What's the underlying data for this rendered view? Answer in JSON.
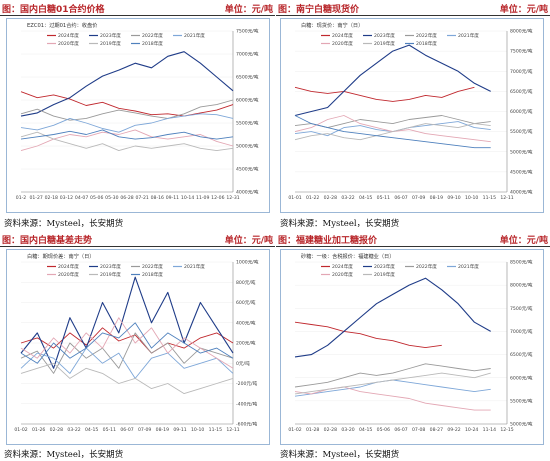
{
  "panels": [
    {
      "title": "图：国内白糖01合约价格",
      "unit": "单位：元/吨",
      "source": "资料来源：Mysteel，长安期货"
    },
    {
      "title": "图：南宁白糖现货价",
      "unit": "单位：元/吨",
      "source": "资料来源：Mysteel，长安期货"
    },
    {
      "title": "图：国内白糖基差走势",
      "unit": "单位：元/吨",
      "source": "资料来源：Mysteel，长安期货"
    },
    {
      "title": "图：福建糖业加工糖报价",
      "unit": "单位：元/吨",
      "source": "资料来源：Mysteel，长安期货"
    }
  ],
  "colors": {
    "2024": "#c0282e",
    "2023": "#1f3c88",
    "2022": "#9a9a9a",
    "2021": "#7ea7d8",
    "2020": "#e3a7b4",
    "2019": "#b9b9b9",
    "2018": "#4f81bd"
  },
  "chart_data": [
    {
      "type": "line",
      "title": "EZC01：过期01合约：收盘价",
      "yunit": "元/吨",
      "ylim": [
        4000,
        7500
      ],
      "yticks": [
        4000,
        4500,
        5000,
        5500,
        6000,
        6500,
        7000,
        7500
      ],
      "xticks": [
        "01-2",
        "01-27",
        "02-18",
        "03-12",
        "04-07",
        "05-06",
        "05-30",
        "06-28",
        "07-21",
        "08-16",
        "09-11",
        "10-14",
        "11-09",
        "12-06",
        "12-31"
      ],
      "legend": [
        "2024年度",
        "2023年度",
        "2022年度",
        "2021年度",
        "2020年度",
        "2019年度",
        "2018年度"
      ],
      "series": [
        {
          "name": "2024年度",
          "key": "2024",
          "values": [
            6180,
            6050,
            6110,
            6020,
            5880,
            5950,
            5820,
            5760,
            5680,
            5700,
            5650,
            5720,
            5780,
            5900
          ]
        },
        {
          "name": "2023年度",
          "key": "2023",
          "values": [
            5650,
            5720,
            5900,
            6050,
            6300,
            6520,
            6650,
            6800,
            6700,
            6950,
            7050,
            6800,
            6500,
            6200
          ]
        },
        {
          "name": "2022年度",
          "key": "2022",
          "values": [
            5700,
            5800,
            5650,
            5560,
            5600,
            5700,
            5780,
            5720,
            5650,
            5600,
            5700,
            5850,
            5900,
            6000
          ]
        },
        {
          "name": "2021年度",
          "key": "2021",
          "values": [
            5400,
            5350,
            5450,
            5600,
            5500,
            5380,
            5300,
            5450,
            5500,
            5600,
            5650,
            5700,
            5680,
            5600
          ]
        },
        {
          "name": "2020年度",
          "key": "2020",
          "values": [
            4900,
            5000,
            5150,
            5250,
            5200,
            5300,
            5250,
            5350,
            5200,
            5150,
            5200,
            5250,
            5100,
            5000
          ]
        },
        {
          "name": "2019年度",
          "key": "2019",
          "values": [
            5200,
            5300,
            5150,
            5050,
            4950,
            5050,
            4900,
            5000,
            4950,
            5000,
            5050,
            4950,
            4900,
            4950
          ]
        },
        {
          "name": "2018年度",
          "key": "2018",
          "values": [
            5150,
            5200,
            5250,
            5320,
            5250,
            5350,
            5200,
            5150,
            5180,
            5250,
            5300,
            5200,
            5150,
            5200
          ]
        }
      ]
    },
    {
      "type": "line",
      "title": "白糖：现货价：南宁（日）",
      "yunit": "元/吨",
      "ylim": [
        4000,
        8000
      ],
      "yticks": [
        4000,
        4500,
        5000,
        5500,
        6000,
        6500,
        7000,
        7500,
        8000
      ],
      "xticks": [
        "01-01",
        "01-22",
        "02-28",
        "03-22",
        "04-15",
        "05-11",
        "06-07",
        "07-09",
        "08-19",
        "09-10",
        "10-10",
        "11-15",
        "12-11"
      ],
      "legend": [
        "2024年度",
        "2023年度",
        "2022年度",
        "2021年度",
        "2020年度",
        "2019年度",
        "2018年度"
      ],
      "series": [
        {
          "name": "2024年度",
          "key": "2024",
          "values": [
            6600,
            6500,
            6450,
            6500,
            6400,
            6300,
            6250,
            6300,
            6400,
            6350,
            6500,
            6600
          ]
        },
        {
          "name": "2023年度",
          "key": "2023",
          "values": [
            5900,
            6000,
            6100,
            6500,
            6900,
            7200,
            7500,
            7650,
            7400,
            7200,
            7000,
            6700,
            6500
          ]
        },
        {
          "name": "2022年度",
          "key": "2022",
          "values": [
            5650,
            5700,
            5600,
            5700,
            5800,
            5750,
            5700,
            5800,
            5850,
            5900,
            5800,
            5700,
            5750
          ]
        },
        {
          "name": "2021年度",
          "key": "2021",
          "values": [
            5450,
            5500,
            5400,
            5600,
            5650,
            5550,
            5500,
            5600,
            5650,
            5700,
            5750,
            5600,
            5550
          ]
        },
        {
          "name": "2020年度",
          "key": "2020",
          "values": [
            5500,
            5600,
            5800,
            5900,
            5700,
            5600,
            5500,
            5550,
            5450,
            5400,
            5350,
            5300,
            5250
          ]
        },
        {
          "name": "2019年度",
          "key": "2019",
          "values": [
            5300,
            5400,
            5450,
            5350,
            5300,
            5400,
            5500,
            5600,
            5700,
            5650,
            5600,
            5700,
            5650
          ]
        },
        {
          "name": "2018年度",
          "key": "2018",
          "values": [
            5900,
            5700,
            5600,
            5500,
            5450,
            5400,
            5350,
            5300,
            5250,
            5200,
            5150,
            5100,
            5100
          ]
        }
      ]
    },
    {
      "type": "line",
      "title": "白糖：期现价差：南宁（日）",
      "yunit": "元/吨",
      "ylim": [
        -600,
        1000
      ],
      "yticks": [
        -600,
        -400,
        -200,
        0,
        200,
        400,
        600,
        800,
        1000
      ],
      "xticks": [
        "01-02",
        "01-26",
        "02-28",
        "03-22",
        "04-15",
        "05-11",
        "06-07",
        "07-09",
        "08-19",
        "09-11",
        "10-10",
        "11-15",
        "12-11"
      ],
      "legend": [
        "2024年度",
        "2023年度",
        "2022年度",
        "2021年度",
        "2020年度",
        "2019年度",
        "2018年度"
      ],
      "series": [
        {
          "name": "2024年度",
          "key": "2024",
          "values": [
            200,
            250,
            150,
            300,
            180,
            350,
            220,
            280,
            100,
            200,
            150,
            250,
            300,
            200
          ]
        },
        {
          "name": "2023年度",
          "key": "2023",
          "values": [
            100,
            300,
            -50,
            450,
            150,
            600,
            300,
            850,
            400,
            700,
            200,
            600,
            350,
            100
          ]
        },
        {
          "name": "2022年度",
          "key": "2022",
          "values": [
            50,
            120,
            -100,
            200,
            50,
            150,
            -50,
            300,
            100,
            200,
            0,
            150,
            100,
            50
          ]
        },
        {
          "name": "2021年度",
          "key": "2021",
          "values": [
            -50,
            100,
            50,
            -100,
            150,
            0,
            100,
            -150,
            50,
            100,
            -50,
            0,
            50,
            -100
          ]
        },
        {
          "name": "2020年度",
          "key": "2020",
          "values": [
            150,
            50,
            250,
            100,
            300,
            150,
            450,
            200,
            350,
            100,
            250,
            150,
            50,
            -50
          ]
        },
        {
          "name": "2019年度",
          "key": "2019",
          "values": [
            -100,
            -50,
            0,
            -150,
            -50,
            -100,
            -200,
            -150,
            -250,
            -200,
            -300,
            -250,
            -200,
            -150
          ]
        },
        {
          "name": "2018年度",
          "key": "2018",
          "values": [
            100,
            0,
            200,
            50,
            150,
            300,
            250,
            400,
            150,
            300,
            200,
            100,
            150,
            50
          ]
        }
      ]
    },
    {
      "type": "line",
      "title": "砂糖：一级：含税报价：福建糖业（日）",
      "yunit": "元/吨",
      "ylim": [
        5000,
        8500
      ],
      "yticks": [
        5000,
        5500,
        6000,
        6500,
        7000,
        7500,
        8000,
        8500
      ],
      "xticks": [
        "01-02",
        "01-28",
        "02-28",
        "03-20",
        "04-15",
        "05-06",
        "06-07",
        "07-08",
        "08-27",
        "09-22",
        "10-24",
        "11-14",
        "12-15"
      ],
      "legend": [
        "2024年度",
        "2023年度",
        "2022年度",
        "2021年度",
        "2020年度",
        "2019年度"
      ],
      "series": [
        {
          "name": "2024年度",
          "key": "2024",
          "values": [
            7200,
            7150,
            7100,
            7000,
            6950,
            6850,
            6800,
            6700,
            6650,
            6700
          ]
        },
        {
          "name": "2023年度",
          "key": "2023",
          "values": [
            6450,
            6500,
            6700,
            7000,
            7300,
            7600,
            7800,
            8000,
            8150,
            7900,
            7600,
            7200,
            7000
          ]
        },
        {
          "name": "2022年度",
          "key": "2022",
          "values": [
            5800,
            5850,
            5900,
            6000,
            6100,
            6050,
            6100,
            6200,
            6300,
            6250,
            6200,
            6150,
            6200
          ]
        },
        {
          "name": "2021年度",
          "key": "2021",
          "values": [
            5600,
            5650,
            5700,
            5750,
            5800,
            5900,
            5950,
            5900,
            5850,
            5800,
            5750,
            5700,
            5750
          ]
        },
        {
          "name": "2020年度",
          "key": "2020",
          "values": [
            5700,
            5650,
            5750,
            5800,
            5700,
            5650,
            5600,
            5550,
            5450,
            5400,
            5350,
            5300,
            5300
          ]
        },
        {
          "name": "2019年度",
          "key": "2019",
          "values": [
            5650,
            5700,
            5750,
            5800,
            5850,
            5900,
            5950,
            6000,
            6050,
            6100,
            6050,
            6000,
            6100
          ]
        }
      ]
    }
  ]
}
